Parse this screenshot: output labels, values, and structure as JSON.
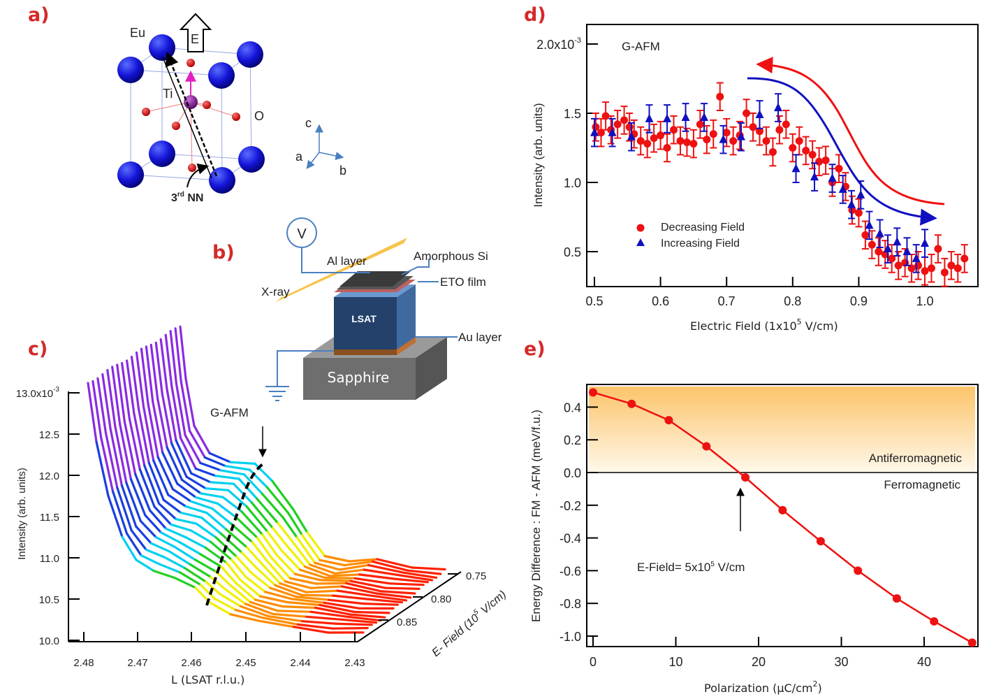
{
  "panel_labels": {
    "a": "a)",
    "b": "b)",
    "c": "c)",
    "d": "d)",
    "e": "e)"
  },
  "panel_a": {
    "labels": {
      "eu": "Eu",
      "ti": "Ti",
      "o": "O",
      "e_field": "E",
      "nn": "3",
      "nn_sup": "rd",
      "nn_rest": " NN"
    },
    "axes": {
      "a": "a",
      "b": "b",
      "c": "c"
    },
    "colors": {
      "eu": "#1414d8",
      "ti": "#8a1a9a",
      "o": "#e01010",
      "ti_arrow": "#e020c0",
      "axes": "#4a7fc0"
    }
  },
  "panel_b": {
    "labels": {
      "voltmeter": "V",
      "al_layer": "Al layer",
      "amorphous_si": "Amorphous Si",
      "eto_film": "ETO film",
      "xray": "X-ray",
      "lsat": "LSAT",
      "au_layer": "Au layer",
      "sapphire": "Sapphire"
    },
    "colors": {
      "lsat": "#2f5688",
      "sapphire": "#6e6e6e",
      "au": "#c07030",
      "xray": "#f7b92a",
      "wire": "#4a7fc0"
    }
  },
  "chart_data": [
    {
      "panel": "c",
      "type": "line",
      "style": "waterfall",
      "xlabel": "L  (LSAT r.l.u.)",
      "ylabel": "Intensity (arb. units)",
      "zlabel": "E- Field (10",
      "zlabel_sup": "5",
      "zlabel_rest": " V/cm)",
      "xlim": [
        2.48,
        2.43
      ],
      "ylim": [
        10.0,
        13.0
      ],
      "x_ticks": [
        "2.48",
        "2.47",
        "2.46",
        "2.45",
        "2.44",
        "2.43"
      ],
      "y_ticks": [
        "10.0",
        "10.5",
        "11.0",
        "11.5",
        "12.0",
        "12.5",
        "13.0x10"
      ],
      "y_exponent": "-3",
      "z_ticks": [
        "0.75",
        "0.80",
        "0.85"
      ],
      "num_curves": 20,
      "annotation": "G-AFM",
      "colormap": [
        "#8a2be2",
        "#1a3fe0",
        "#00d0f0",
        "#20d020",
        "#f0f000",
        "#ff8c00",
        "#ff2000"
      ]
    },
    {
      "panel": "d",
      "type": "scatter",
      "xlabel": "Electric Field (1x10",
      "xlabel_sup": "5",
      "xlabel_rest": " V/cm)",
      "ylabel": "Intensity (arb. units)",
      "xlim": [
        0.49,
        1.08
      ],
      "ylim": [
        0.25,
        2.15
      ],
      "x_ticks": [
        "0.5",
        "0.6",
        "0.7",
        "0.8",
        "0.9",
        "1.0"
      ],
      "y_ticks": [
        "0.5",
        "1.0",
        "1.5",
        "2.0x10"
      ],
      "y_exponent": "-3",
      "annotation": "G-AFM",
      "legend": "bottom-left",
      "series": [
        {
          "name": "Decreasing Field",
          "color": "#ee1111",
          "marker": "circle",
          "yerr": 0.1,
          "x": [
            0.502,
            0.51,
            0.517,
            0.525,
            0.535,
            0.545,
            0.553,
            0.56,
            0.57,
            0.58,
            0.59,
            0.6,
            0.61,
            0.62,
            0.63,
            0.64,
            0.65,
            0.66,
            0.67,
            0.68,
            0.69,
            0.7,
            0.71,
            0.72,
            0.73,
            0.74,
            0.75,
            0.76,
            0.77,
            0.78,
            0.79,
            0.8,
            0.81,
            0.82,
            0.83,
            0.84,
            0.85,
            0.86,
            0.87,
            0.88,
            0.89,
            0.9,
            0.91,
            0.92,
            0.93,
            0.94,
            0.95,
            0.96,
            0.97,
            0.98,
            0.99,
            1.0,
            1.01,
            1.02,
            1.03,
            1.04,
            1.05,
            1.06
          ],
          "y": [
            1.4,
            1.36,
            1.48,
            1.38,
            1.42,
            1.45,
            1.4,
            1.35,
            1.3,
            1.28,
            1.32,
            1.34,
            1.25,
            1.38,
            1.3,
            1.29,
            1.28,
            1.42,
            1.31,
            1.35,
            1.62,
            1.36,
            1.3,
            1.34,
            1.5,
            1.4,
            1.37,
            1.3,
            1.22,
            1.38,
            1.42,
            1.25,
            1.3,
            1.23,
            1.2,
            1.15,
            1.16,
            1.0,
            1.1,
            0.97,
            0.8,
            0.78,
            0.62,
            0.55,
            0.5,
            0.48,
            0.45,
            0.4,
            0.42,
            0.38,
            0.4,
            0.36,
            0.38,
            0.52,
            0.35,
            0.4,
            0.38,
            0.45
          ]
        },
        {
          "name": "Increasing Field",
          "color": "#1010c0",
          "marker": "triangle",
          "yerr": 0.1,
          "x": [
            0.5,
            0.527,
            0.556,
            0.583,
            0.61,
            0.638,
            0.666,
            0.695,
            0.722,
            0.75,
            0.778,
            0.805,
            0.833,
            0.86,
            0.876,
            0.889,
            0.903,
            0.916,
            0.932,
            0.944,
            0.958,
            0.973,
            0.987,
            1.0
          ],
          "y": [
            1.36,
            1.36,
            1.33,
            1.46,
            1.46,
            1.47,
            1.47,
            1.31,
            1.33,
            1.49,
            1.54,
            1.1,
            1.04,
            1.03,
            0.95,
            0.84,
            0.91,
            0.69,
            0.63,
            0.52,
            0.57,
            0.5,
            0.45,
            0.56
          ]
        }
      ]
    },
    {
      "panel": "e",
      "type": "line",
      "xlabel": "Polarization (μC/cm",
      "xlabel_sup": "2",
      "xlabel_rest": ")",
      "ylabel": "Energy Difference : FM - AFM (meV/f.u.)",
      "xlim": [
        -0.5,
        46.5
      ],
      "ylim": [
        -1.08,
        0.53
      ],
      "x_ticks": [
        "0",
        "10",
        "20",
        "30",
        "40"
      ],
      "y_ticks": [
        "0.4",
        "0.2",
        "0.0",
        "-0.2",
        "-0.4",
        "-0.6",
        "-0.8",
        "-1.0"
      ],
      "regions": {
        "upper": "Antiferromagnetic",
        "lower": "Ferromagnetic"
      },
      "annotation": "E-Field= 5x10",
      "annotation_sup": "5",
      "annotation_rest": " V/cm",
      "colors": {
        "line": "#ee1111",
        "fill_top": "#fbc46a"
      },
      "series": [
        {
          "x": [
            0,
            4.66,
            9.15,
            13.7,
            18.4,
            22.9,
            27.5,
            32.0,
            36.7,
            41.2,
            45.8
          ],
          "y": [
            0.49,
            0.42,
            0.32,
            0.16,
            -0.03,
            -0.23,
            -0.42,
            -0.6,
            -0.77,
            -0.91,
            -1.04
          ]
        }
      ]
    }
  ]
}
